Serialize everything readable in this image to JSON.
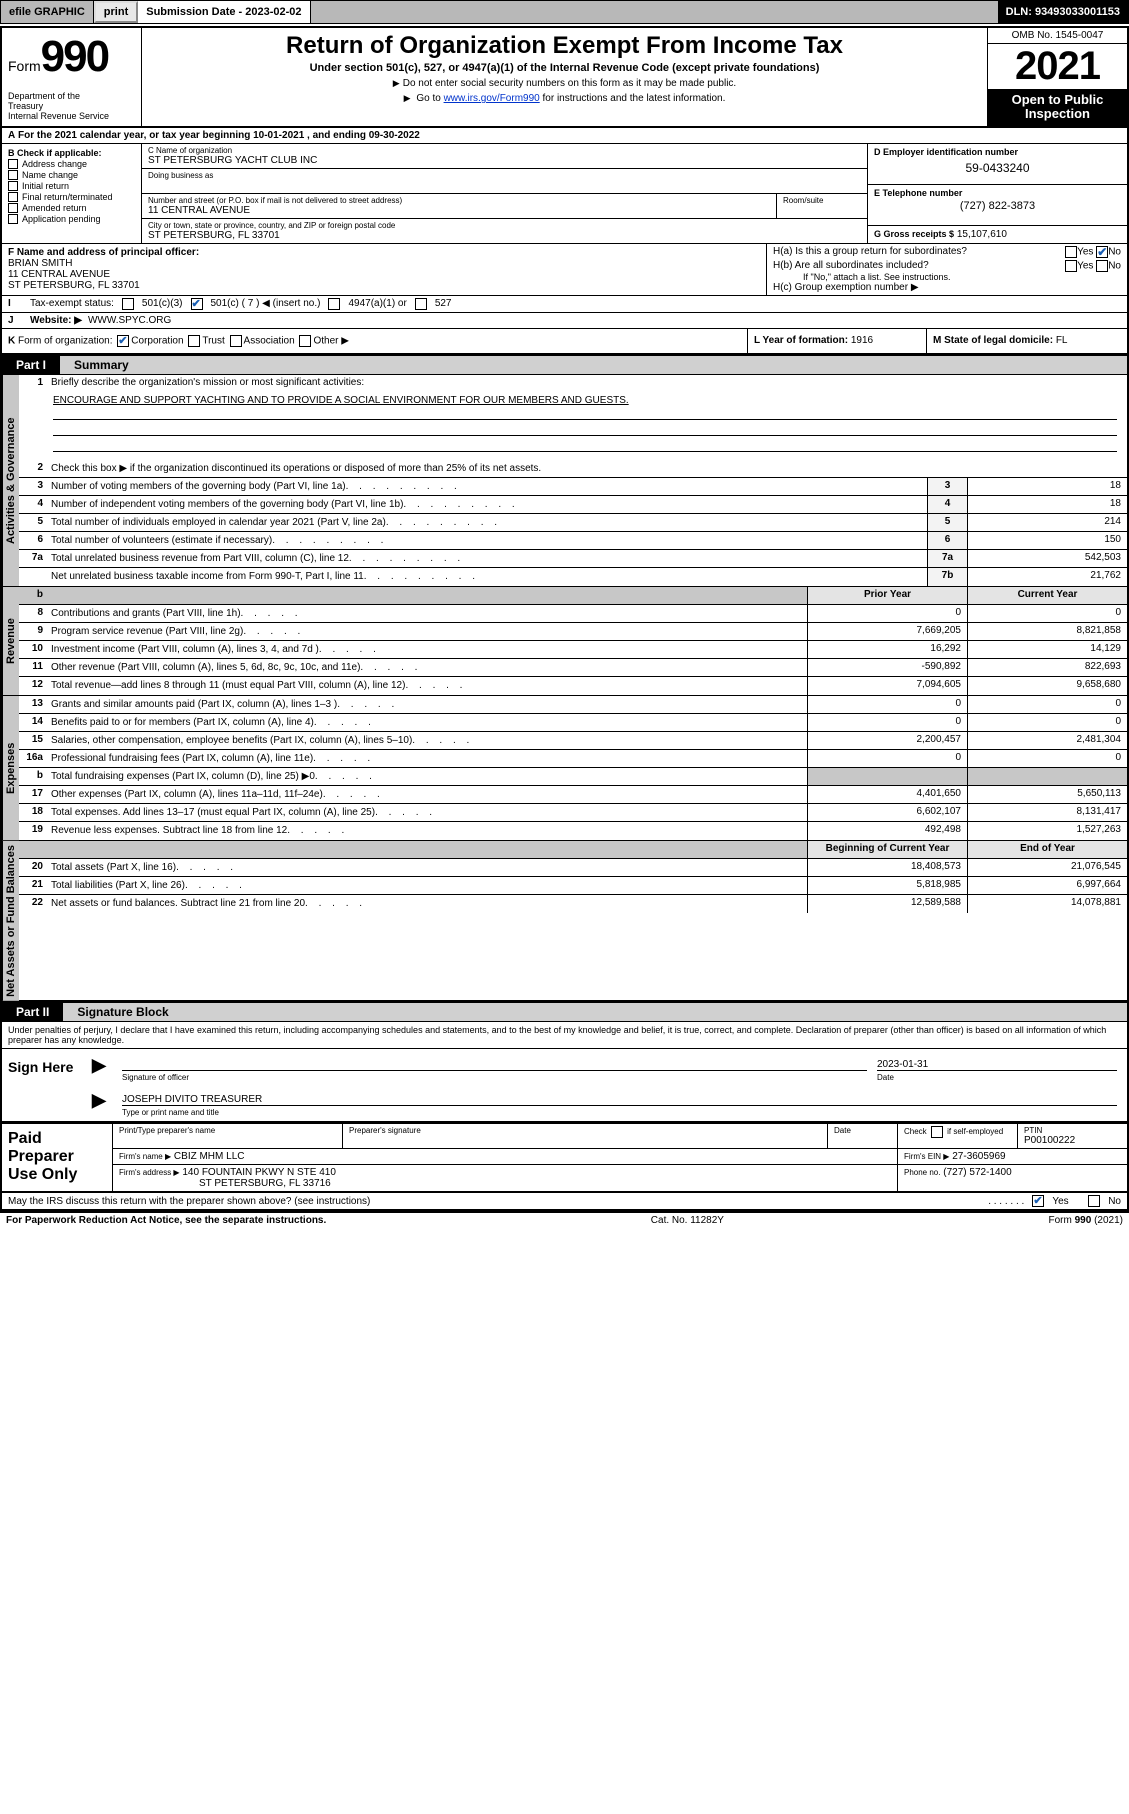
{
  "topbar": {
    "efile": "efile GRAPHIC",
    "print": "print",
    "submission": "Submission Date - 2023-02-02",
    "dln": "DLN: 93493033001153"
  },
  "header": {
    "form_prefix": "Form",
    "form_number": "990",
    "dept": "Department of the Treasury\nInternal Revenue Service",
    "title": "Return of Organization Exempt From Income Tax",
    "subtitle": "Under section 501(c), 527, or 4947(a)(1) of the Internal Revenue Code (except private foundations)",
    "note1": "Do not enter social security numbers on this form as it may be made public.",
    "note2_pre": "Go to ",
    "note2_link": "www.irs.gov/Form990",
    "note2_post": " for instructions and the latest information.",
    "omb": "OMB No. 1545-0047",
    "year": "2021",
    "open": "Open to Public Inspection"
  },
  "row_a": "For the 2021 calendar year, or tax year beginning 10-01-2021   , and ending 09-30-2022",
  "col_b": {
    "label": "B Check if applicable:",
    "items": [
      "Address change",
      "Name change",
      "Initial return",
      "Final return/terminated",
      "Amended return",
      "Application pending"
    ]
  },
  "col_c": {
    "name_lbl": "C Name of organization",
    "name": "ST PETERSBURG YACHT CLUB INC",
    "dba_lbl": "Doing business as",
    "street_lbl": "Number and street (or P.O. box if mail is not delivered to street address)",
    "room_lbl": "Room/suite",
    "street": "11 CENTRAL AVENUE",
    "city_lbl": "City or town, state or province, country, and ZIP or foreign postal code",
    "city": "ST PETERSBURG, FL  33701"
  },
  "col_de": {
    "d_lbl": "D Employer identification number",
    "d_val": "59-0433240",
    "e_lbl": "E Telephone number",
    "e_val": "(727) 822-3873",
    "g_lbl": "G Gross receipts $",
    "g_val": "15,107,610"
  },
  "col_f": {
    "lbl": "F  Name and address of principal officer:",
    "name": "BRIAN SMITH",
    "addr1": "11 CENTRAL AVENUE",
    "addr2": "ST PETERSBURG, FL  33701"
  },
  "col_h": {
    "ha": "H(a)  Is this a group return for subordinates?",
    "hb": "H(b)  Are all subordinates included?",
    "hb_note": "If \"No,\" attach a list. See instructions.",
    "hc": "H(c)  Group exemption number ▶",
    "yes": "Yes",
    "no": "No"
  },
  "row_i": {
    "lead": "I",
    "label": "Tax-exempt status:",
    "opt1": "501(c)(3)",
    "opt2": "501(c) ( 7 ) ◀ (insert no.)",
    "opt3": "4947(a)(1) or",
    "opt4": "527"
  },
  "row_j": {
    "lead": "J",
    "label": "Website: ▶",
    "val": "WWW.SPYC.ORG"
  },
  "row_k": {
    "lead": "K",
    "label": "Form of organization:",
    "opts": [
      "Corporation",
      "Trust",
      "Association",
      "Other ▶"
    ],
    "l_label": "L Year of formation:",
    "l_val": "1916",
    "m_label": "M State of legal domicile:",
    "m_val": "FL"
  },
  "parts": {
    "p1": "Part I",
    "p1t": "Summary",
    "p2": "Part II",
    "p2t": "Signature Block"
  },
  "tabs": {
    "gov": "Activities & Governance",
    "rev": "Revenue",
    "exp": "Expenses",
    "net": "Net Assets or Fund Balances"
  },
  "summary": {
    "l1_lbl": "Briefly describe the organization's mission or most significant activities:",
    "l1_txt": "ENCOURAGE AND SUPPORT YACHTING AND TO PROVIDE A SOCIAL ENVIRONMENT FOR OUR MEMBERS AND GUESTS.",
    "l2": "Check this box ▶        if the organization discontinued its operations or disposed of more than 25% of its net assets.",
    "lines_gov": [
      {
        "n": "3",
        "d": "Number of voting members of the governing body (Part VI, line 1a)",
        "c": "3",
        "v": "18"
      },
      {
        "n": "4",
        "d": "Number of independent voting members of the governing body (Part VI, line 1b)",
        "c": "4",
        "v": "18"
      },
      {
        "n": "5",
        "d": "Total number of individuals employed in calendar year 2021 (Part V, line 2a)",
        "c": "5",
        "v": "214"
      },
      {
        "n": "6",
        "d": "Total number of volunteers (estimate if necessary)",
        "c": "6",
        "v": "150"
      },
      {
        "n": "7a",
        "d": "Total unrelated business revenue from Part VIII, column (C), line 12",
        "c": "7a",
        "v": "542,503"
      },
      {
        "n": "",
        "d": "Net unrelated business taxable income from Form 990-T, Part I, line 11",
        "c": "7b",
        "v": "21,762"
      }
    ],
    "hdr_prior": "Prior Year",
    "hdr_curr": "Current Year",
    "lines_rev": [
      {
        "n": "8",
        "d": "Contributions and grants (Part VIII, line 1h)",
        "p": "0",
        "c": "0"
      },
      {
        "n": "9",
        "d": "Program service revenue (Part VIII, line 2g)",
        "p": "7,669,205",
        "c": "8,821,858"
      },
      {
        "n": "10",
        "d": "Investment income (Part VIII, column (A), lines 3, 4, and 7d )",
        "p": "16,292",
        "c": "14,129"
      },
      {
        "n": "11",
        "d": "Other revenue (Part VIII, column (A), lines 5, 6d, 8c, 9c, 10c, and 11e)",
        "p": "-590,892",
        "c": "822,693"
      },
      {
        "n": "12",
        "d": "Total revenue—add lines 8 through 11 (must equal Part VIII, column (A), line 12)",
        "p": "7,094,605",
        "c": "9,658,680"
      }
    ],
    "lines_exp": [
      {
        "n": "13",
        "d": "Grants and similar amounts paid (Part IX, column (A), lines 1–3 )",
        "p": "0",
        "c": "0"
      },
      {
        "n": "14",
        "d": "Benefits paid to or for members (Part IX, column (A), line 4)",
        "p": "0",
        "c": "0"
      },
      {
        "n": "15",
        "d": "Salaries, other compensation, employee benefits (Part IX, column (A), lines 5–10)",
        "p": "2,200,457",
        "c": "2,481,304"
      },
      {
        "n": "16a",
        "d": "Professional fundraising fees (Part IX, column (A), line 11e)",
        "p": "0",
        "c": "0"
      },
      {
        "n": "b",
        "d": "Total fundraising expenses (Part IX, column (D), line 25) ▶0",
        "p": "",
        "c": "",
        "shade": true
      },
      {
        "n": "17",
        "d": "Other expenses (Part IX, column (A), lines 11a–11d, 11f–24e)",
        "p": "4,401,650",
        "c": "5,650,113"
      },
      {
        "n": "18",
        "d": "Total expenses. Add lines 13–17 (must equal Part IX, column (A), line 25)",
        "p": "6,602,107",
        "c": "8,131,417"
      },
      {
        "n": "19",
        "d": "Revenue less expenses. Subtract line 18 from line 12",
        "p": "492,498",
        "c": "1,527,263"
      }
    ],
    "hdr_beg": "Beginning of Current Year",
    "hdr_end": "End of Year",
    "lines_net": [
      {
        "n": "20",
        "d": "Total assets (Part X, line 16)",
        "p": "18,408,573",
        "c": "21,076,545"
      },
      {
        "n": "21",
        "d": "Total liabilities (Part X, line 26)",
        "p": "5,818,985",
        "c": "6,997,664"
      },
      {
        "n": "22",
        "d": "Net assets or fund balances. Subtract line 21 from line 20",
        "p": "12,589,588",
        "c": "14,078,881"
      }
    ]
  },
  "sig": {
    "para": "Under penalties of perjury, I declare that I have examined this return, including accompanying schedules and statements, and to the best of my knowledge and belief, it is true, correct, and complete. Declaration of preparer (other than officer) is based on all information of which preparer has any knowledge.",
    "sign_here": "Sign Here",
    "sig_officer": "Signature of officer",
    "date_lbl": "Date",
    "date_val": "2023-01-31",
    "name": "JOSEPH DIVITO  TREASURER",
    "name_lbl": "Type or print name and title"
  },
  "paid": {
    "title": "Paid Preparer Use Only",
    "h_name": "Print/Type preparer's name",
    "h_sig": "Preparer's signature",
    "h_date": "Date",
    "h_check": "Check        if self-employed",
    "h_ptin": "PTIN",
    "ptin": "P00100222",
    "firm_name_lbl": "Firm's name   ▶",
    "firm_name": "CBIZ MHM LLC",
    "firm_ein_lbl": "Firm's EIN ▶",
    "firm_ein": "27-3605969",
    "firm_addr_lbl": "Firm's address ▶",
    "firm_addr": "140 FOUNTAIN PKWY N STE 410",
    "firm_city": "ST PETERSBURG, FL  33716",
    "phone_lbl": "Phone no.",
    "phone": "(727) 572-1400"
  },
  "bottom": {
    "q": "May the IRS discuss this return with the preparer shown above? (see instructions)",
    "yes": "Yes",
    "no": "No",
    "pra": "For Paperwork Reduction Act Notice, see the separate instructions.",
    "cat": "Cat. No. 11282Y",
    "form": "Form 990 (2021)"
  }
}
